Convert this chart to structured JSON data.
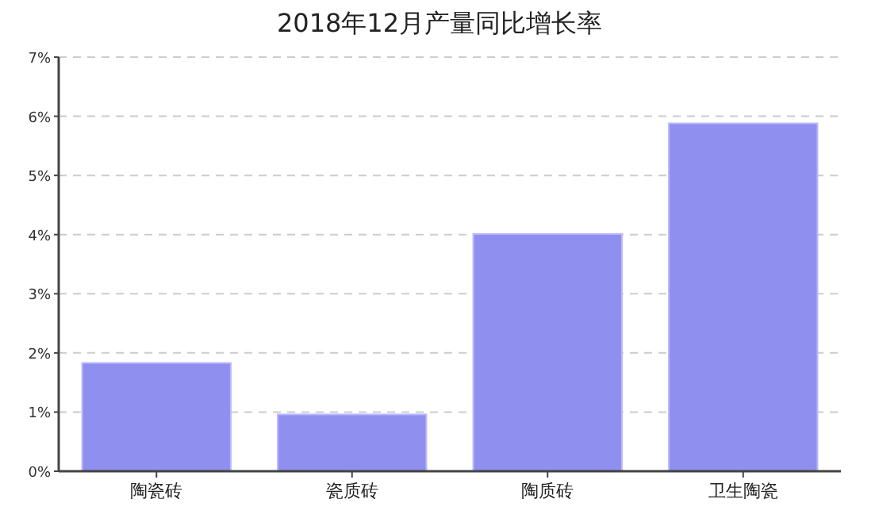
{
  "chart_data": {
    "type": "bar",
    "title": "2018年12月产量同比增长率",
    "categories": [
      "陶瓷砖",
      "瓷质砖",
      "陶质砖",
      "卫生陶瓷"
    ],
    "values": [
      1.83,
      0.96,
      4.01,
      5.88
    ],
    "color": "#8f8fef",
    "ylim": [
      0,
      7
    ],
    "yticks": [
      {
        "value": 0,
        "label": "0%"
      },
      {
        "value": 1,
        "label": "1%"
      },
      {
        "value": 2,
        "label": "2%"
      },
      {
        "value": 3,
        "label": "3%"
      },
      {
        "value": 4,
        "label": "4%"
      },
      {
        "value": 5,
        "label": "5%"
      },
      {
        "value": 6,
        "label": "6%"
      },
      {
        "value": 7,
        "label": "7%"
      }
    ],
    "grid": "y"
  }
}
